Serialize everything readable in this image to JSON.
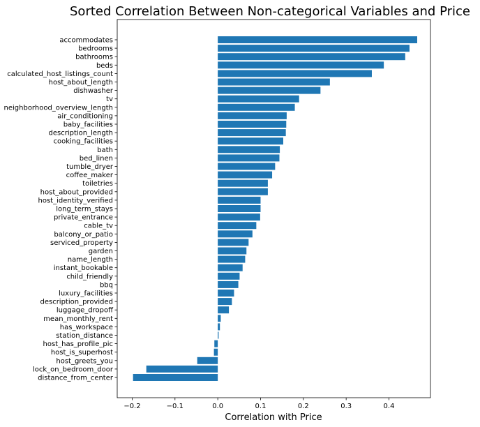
{
  "chart_data": {
    "type": "bar",
    "orientation": "horizontal",
    "title": "Sorted Correlation Between Non-categorical Variables and Price",
    "xlabel": "Correlation with Price",
    "ylabel": "",
    "xlim": [
      -0.235,
      0.497
    ],
    "xticks": [
      -0.2,
      -0.1,
      0.0,
      0.1,
      0.2,
      0.3,
      0.4
    ],
    "xtick_labels": [
      "−0.2",
      "−0.1",
      "0.0",
      "0.1",
      "0.2",
      "0.3",
      "0.4"
    ],
    "grid": false,
    "bar_color": "#1f77b4",
    "categories": [
      "accommodates",
      "bedrooms",
      "bathrooms",
      "beds",
      "calculated_host_listings_count",
      "host_about_length",
      "dishwasher",
      "tv",
      "neighborhood_overview_length",
      "air_conditioning",
      "baby_facilities",
      "description_length",
      "cooking_facilities",
      "bath",
      "bed_linen",
      "tumble_dryer",
      "coffee_maker",
      "toiletries",
      "host_about_provided",
      "host_identity_verified",
      "long_term_stays",
      "private_entrance",
      "cable_tv",
      "balcony_or_patio",
      "serviced_property",
      "garden",
      "name_length",
      "instant_bookable",
      "child_friendly",
      "bbq",
      "luxury_facilities",
      "description_provided",
      "luggage_dropoff",
      "mean_monthly_rent",
      "has_workspace",
      "station_distance",
      "host_has_profile_pic",
      "host_is_superhost",
      "host_greets_you",
      "lock_on_bedroom_door",
      "distance_from_center"
    ],
    "values": [
      0.466,
      0.448,
      0.438,
      0.388,
      0.36,
      0.262,
      0.24,
      0.19,
      0.18,
      0.161,
      0.16,
      0.159,
      0.153,
      0.145,
      0.144,
      0.134,
      0.127,
      0.117,
      0.117,
      0.1,
      0.1,
      0.099,
      0.09,
      0.081,
      0.072,
      0.067,
      0.064,
      0.058,
      0.051,
      0.048,
      0.038,
      0.033,
      0.026,
      0.007,
      0.005,
      0.002,
      -0.008,
      -0.009,
      -0.048,
      -0.167,
      -0.198
    ]
  }
}
